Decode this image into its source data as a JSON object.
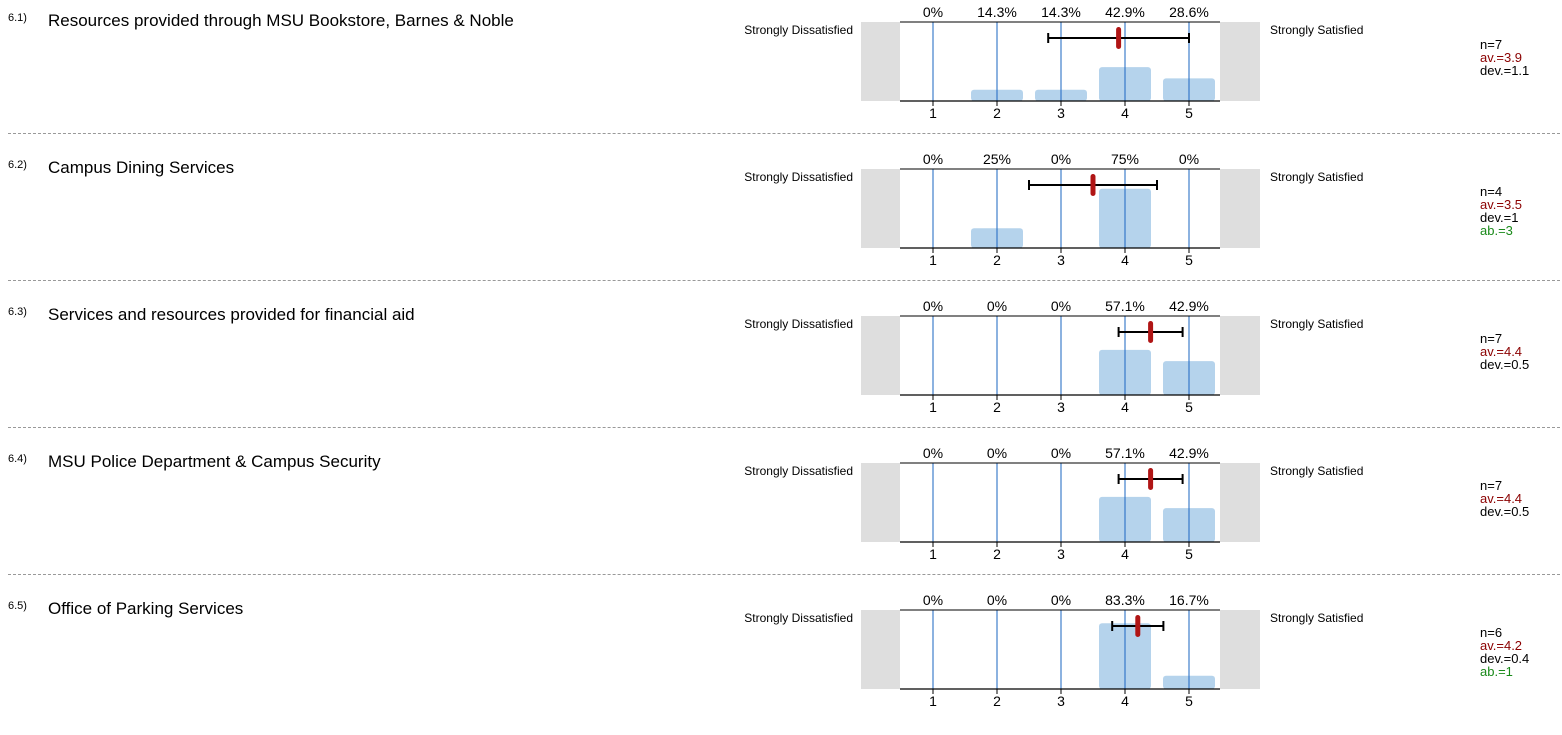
{
  "chart_data": [
    {
      "type": "bar",
      "number": "6.1)",
      "title": "Resources provided through MSU Bookstore, Barnes & Noble",
      "left_label": "Strongly Dissatisfied",
      "right_label": "Strongly Satisfied",
      "categories": [
        "1",
        "2",
        "3",
        "4",
        "5"
      ],
      "values": [
        0,
        14.3,
        14.3,
        42.9,
        28.6
      ],
      "percent_labels": [
        "0%",
        "14.3%",
        "14.3%",
        "42.9%",
        "28.6%"
      ],
      "mean": 3.9,
      "deviation": 1.1,
      "stats": {
        "n": "n=7",
        "av": "av.=3.9",
        "dev": "dev.=1.1",
        "ab": ""
      }
    },
    {
      "type": "bar",
      "number": "6.2)",
      "title": "Campus Dining Services",
      "left_label": "Strongly Dissatisfied",
      "right_label": "Strongly Satisfied",
      "categories": [
        "1",
        "2",
        "3",
        "4",
        "5"
      ],
      "values": [
        0,
        25,
        0,
        75,
        0
      ],
      "percent_labels": [
        "0%",
        "25%",
        "0%",
        "75%",
        "0%"
      ],
      "mean": 3.5,
      "deviation": 1,
      "stats": {
        "n": "n=4",
        "av": "av.=3.5",
        "dev": "dev.=1",
        "ab": "ab.=3"
      }
    },
    {
      "type": "bar",
      "number": "6.3)",
      "title": "Services and resources provided for financial aid",
      "left_label": "Strongly Dissatisfied",
      "right_label": "Strongly Satisfied",
      "categories": [
        "1",
        "2",
        "3",
        "4",
        "5"
      ],
      "values": [
        0,
        0,
        0,
        57.1,
        42.9
      ],
      "percent_labels": [
        "0%",
        "0%",
        "0%",
        "57.1%",
        "42.9%"
      ],
      "mean": 4.4,
      "deviation": 0.5,
      "stats": {
        "n": "n=7",
        "av": "av.=4.4",
        "dev": "dev.=0.5",
        "ab": ""
      }
    },
    {
      "type": "bar",
      "number": "6.4)",
      "title": "MSU Police Department & Campus Security",
      "left_label": "Strongly Dissatisfied",
      "right_label": "Strongly Satisfied",
      "categories": [
        "1",
        "2",
        "3",
        "4",
        "5"
      ],
      "values": [
        0,
        0,
        0,
        57.1,
        42.9
      ],
      "percent_labels": [
        "0%",
        "0%",
        "0%",
        "57.1%",
        "42.9%"
      ],
      "mean": 4.4,
      "deviation": 0.5,
      "stats": {
        "n": "n=7",
        "av": "av.=4.4",
        "dev": "dev.=0.5",
        "ab": ""
      }
    },
    {
      "type": "bar",
      "number": "6.5)",
      "title": "Office of Parking Services",
      "left_label": "Strongly Dissatisfied",
      "right_label": "Strongly Satisfied",
      "categories": [
        "1",
        "2",
        "3",
        "4",
        "5"
      ],
      "values": [
        0,
        0,
        0,
        83.3,
        16.7
      ],
      "percent_labels": [
        "0%",
        "0%",
        "0%",
        "83.3%",
        "16.7%"
      ],
      "mean": 4.2,
      "deviation": 0.4,
      "stats": {
        "n": "n=6",
        "av": "av.=4.2",
        "dev": "dev.=0.4",
        "ab": "ab.=1"
      }
    }
  ],
  "colors": {
    "bar": "#b5d3ec",
    "gridline": "#1a66c2",
    "mean_marker": "#b01515",
    "error_bar": "#000000",
    "side_panel": "#dedede",
    "av_text": "#8b0000",
    "ab_text": "#1a8a1a"
  }
}
